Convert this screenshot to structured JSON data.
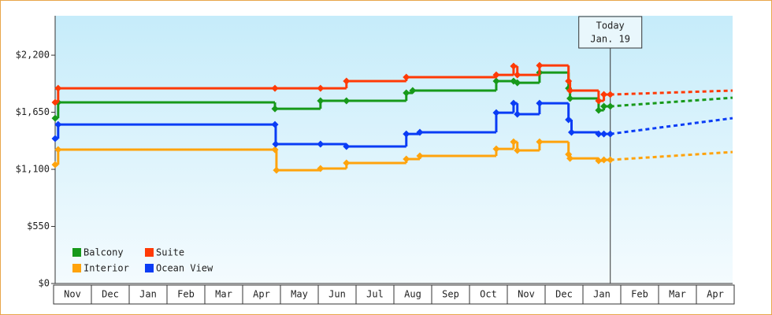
{
  "chart_data": {
    "type": "step-line",
    "categories": [
      "Nov",
      "Dec",
      "Jan",
      "Feb",
      "Mar",
      "Apr",
      "May",
      "Jun",
      "Jul",
      "Aug",
      "Sep",
      "Oct",
      "Nov",
      "Dec",
      "Jan",
      "Feb",
      "Mar",
      "Apr"
    ],
    "xlim": [
      0,
      18
    ],
    "ylim": [
      0,
      2580
    ],
    "yticks": [
      {
        "value": 0,
        "label": "$0"
      },
      {
        "value": 550,
        "label": "$550"
      },
      {
        "value": 1100,
        "label": "$1,100"
      },
      {
        "value": 1650,
        "label": "$1,650"
      },
      {
        "value": 2200,
        "label": "$2,200"
      }
    ],
    "today": {
      "x": 14.75,
      "label": "Today",
      "date": "Jan. 19"
    },
    "series": [
      {
        "name": "Balcony",
        "color": "#17991a",
        "x": [
          0,
          0.08,
          5.84,
          7.05,
          7.74,
          9.33,
          9.5,
          11.72,
          12.18,
          12.28,
          12.87,
          13.64,
          13.68,
          14.44,
          14.58,
          14.75
        ],
        "values": [
          1593,
          1745,
          1684,
          1760,
          1760,
          1836,
          1859,
          1950,
          1950,
          1934,
          2033,
          1881,
          1783,
          1669,
          1707,
          1707
        ],
        "forecast": {
          "x": [
            14.75,
            18
          ],
          "values": [
            1707,
            1790
          ]
        }
      },
      {
        "name": "Suite",
        "color": "#ff3a06",
        "x": [
          0,
          0.08,
          5.84,
          7.05,
          7.74,
          9.33,
          11.72,
          12.18,
          12.28,
          12.87,
          13.64,
          13.68,
          14.44,
          14.58,
          14.75
        ],
        "values": [
          1745,
          1881,
          1881,
          1881,
          1950,
          1988,
          2010,
          2094,
          2010,
          2101,
          1950,
          1859,
          1760,
          1821,
          1821
        ],
        "forecast": {
          "x": [
            14.75,
            18
          ],
          "values": [
            1821,
            1859
          ]
        }
      },
      {
        "name": "Interior",
        "color": "#ffa30c",
        "x": [
          0,
          0.08,
          5.84,
          5.88,
          7.05,
          7.74,
          9.33,
          9.69,
          11.72,
          12.18,
          12.28,
          12.87,
          13.64,
          13.68,
          14.44,
          14.58,
          14.75
        ],
        "values": [
          1145,
          1290,
          1290,
          1092,
          1108,
          1161,
          1199,
          1229,
          1297,
          1365,
          1282,
          1365,
          1244,
          1206,
          1183,
          1191,
          1191
        ],
        "forecast": {
          "x": [
            14.75,
            18
          ],
          "values": [
            1191,
            1267
          ]
        }
      },
      {
        "name": "Ocean View",
        "color": "#0a3cf5",
        "x": [
          0,
          0.08,
          5.84,
          5.86,
          7.05,
          7.74,
          9.33,
          9.69,
          11.72,
          12.18,
          12.28,
          12.87,
          13.64,
          13.72,
          14.44,
          14.58,
          14.75
        ],
        "values": [
          1396,
          1532,
          1532,
          1343,
          1343,
          1320,
          1441,
          1457,
          1646,
          1737,
          1631,
          1737,
          1578,
          1457,
          1441,
          1441,
          1441
        ],
        "forecast": {
          "x": [
            14.75,
            18
          ],
          "values": [
            1441,
            1593
          ]
        }
      }
    ]
  }
}
